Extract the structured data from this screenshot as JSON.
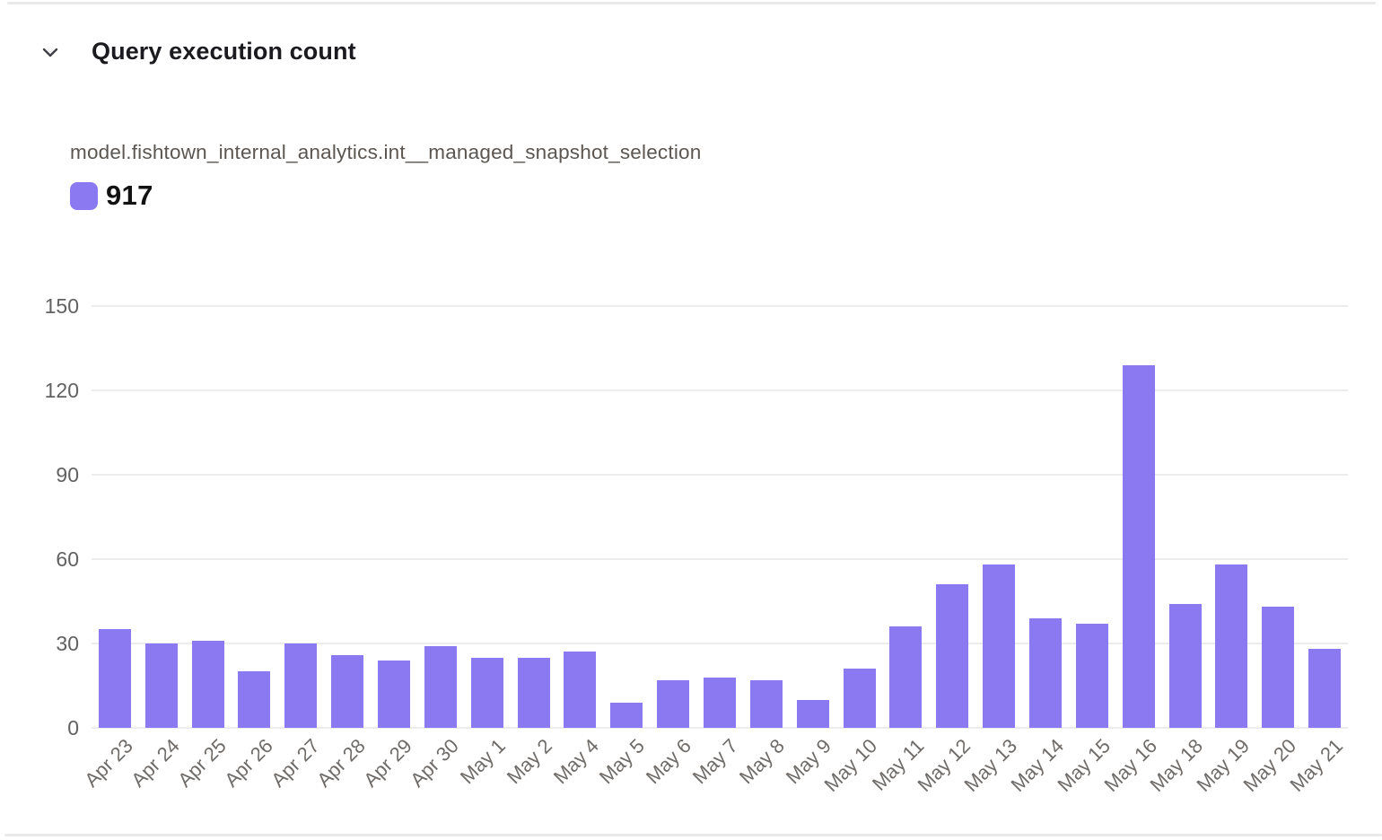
{
  "header": {
    "title": "Query execution count",
    "collapse_icon": "chevron-down-icon"
  },
  "series_label": "model.fishtown_internal_analytics.int__managed_snapshot_selection",
  "legend": {
    "value": "917",
    "swatch_color": "#8a79f1"
  },
  "colors": {
    "accent": "#8a79f1",
    "gridline": "#ececec",
    "y_axis_text": "#616161",
    "x_axis_text": "#6f6b68",
    "title_text": "#1b1b1f",
    "series_label_text": "#5b5651",
    "divider": "#e9e9e9"
  },
  "chart_data": {
    "type": "bar",
    "title": "Query execution count",
    "series_name": "model.fishtown_internal_analytics.int__managed_snapshot_selection",
    "legend_total": 917,
    "categories": [
      "Apr 23",
      "Apr 24",
      "Apr 25",
      "Apr 26",
      "Apr 27",
      "Apr 28",
      "Apr 29",
      "Apr 30",
      "May 1",
      "May 2",
      "May 4",
      "May 5",
      "May 6",
      "May 7",
      "May 8",
      "May 9",
      "May 10",
      "May 11",
      "May 12",
      "May 13",
      "May 14",
      "May 15",
      "May 16",
      "May 18",
      "May 19",
      "May 20",
      "May 21"
    ],
    "values": [
      35,
      30,
      31,
      20,
      30,
      26,
      24,
      29,
      25,
      25,
      27,
      9,
      17,
      18,
      17,
      10,
      21,
      36,
      51,
      58,
      39,
      37,
      129,
      44,
      58,
      43,
      28
    ],
    "xlabel": "",
    "ylabel": "",
    "ylim": [
      0,
      150
    ],
    "yticks": [
      0,
      30,
      60,
      90,
      120,
      150
    ],
    "grid": true,
    "legend_position": "top-left",
    "bar_color": "#8a79f1",
    "x_tick_rotation_deg": -45
  }
}
